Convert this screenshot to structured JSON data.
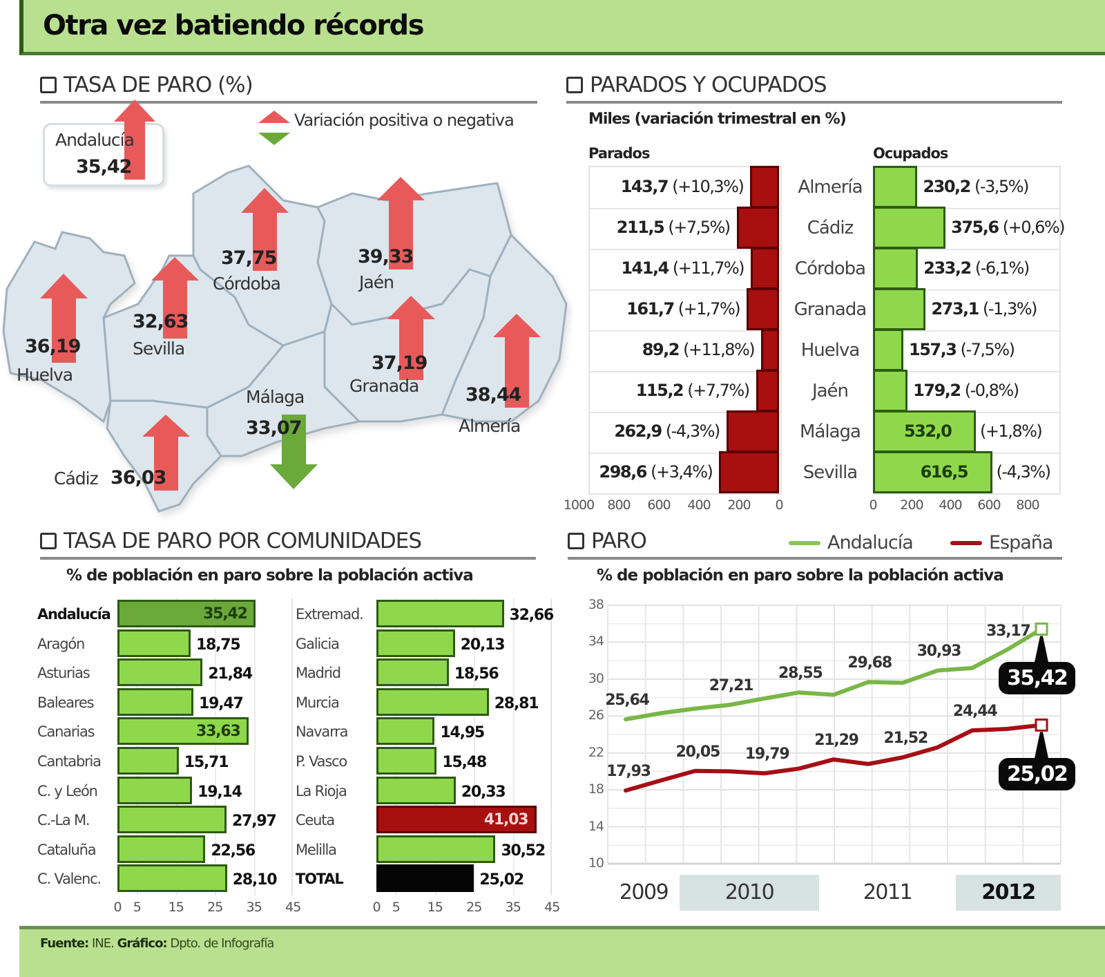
{
  "title": "Otra vez batiendo récords",
  "colors": {
    "header_green": "#b9e08f",
    "bar_green": "#8fd84c",
    "bar_green_dark": "#6aa93a",
    "bar_red": "#a80f0f",
    "arrow_red": "#e85a5a",
    "arrow_green": "#6aa93a",
    "line_andalucia": "#7ab648",
    "line_espana": "#a50f15",
    "map_fill": "#dde6ed",
    "map_stroke": "#9fb0bd"
  },
  "tasa_paro": {
    "heading": "TASA DE PARO (%)",
    "legend": "Variación positiva o negativa",
    "andalucia": {
      "name": "Andalucía",
      "value": "35,42",
      "trend": "up"
    },
    "provinces": [
      {
        "name": "Huelva",
        "value": "36,19",
        "trend": "up"
      },
      {
        "name": "Sevilla",
        "value": "32,63",
        "trend": "up"
      },
      {
        "name": "Córdoba",
        "value": "37,75",
        "trend": "up"
      },
      {
        "name": "Jaén",
        "value": "39,33",
        "trend": "up"
      },
      {
        "name": "Granada",
        "value": "37,19",
        "trend": "up"
      },
      {
        "name": "Almería",
        "value": "38,44",
        "trend": "up"
      },
      {
        "name": "Málaga",
        "value": "33,07",
        "trend": "down"
      },
      {
        "name": "Cádiz",
        "value": "36,03",
        "trend": "up"
      }
    ]
  },
  "parados_ocupados": {
    "heading": "PARADOS Y OCUPADOS",
    "subtitle": "Miles (variación trimestral en %)",
    "parados_label": "Parados",
    "ocupados_label": "Ocupados",
    "rows": [
      {
        "province": "Almería",
        "parados": "143,7",
        "parados_var": "(+10,3%)",
        "ocupados": "230,2",
        "ocupados_var": "(-3,5%)"
      },
      {
        "province": "Cádiz",
        "parados": "211,5",
        "parados_var": "(+7,5%)",
        "ocupados": "375,6",
        "ocupados_var": "(+0,6%)"
      },
      {
        "province": "Córdoba",
        "parados": "141,4",
        "parados_var": "(+11,7%)",
        "ocupados": "233,2",
        "ocupados_var": "(-6,1%)"
      },
      {
        "province": "Granada",
        "parados": "161,7",
        "parados_var": "(+1,7%)",
        "ocupados": "273,1",
        "ocupados_var": "(-1,3%)"
      },
      {
        "province": "Huelva",
        "parados": "89,2",
        "parados_var": "(+11,8%)",
        "ocupados": "157,3",
        "ocupados_var": "(-7,5%)"
      },
      {
        "province": "Jaén",
        "parados": "115,2",
        "parados_var": "(+7,7%)",
        "ocupados": "179,2",
        "ocupados_var": "(-0,8%)"
      },
      {
        "province": "Málaga",
        "parados": "262,9",
        "parados_var": "(-4,3%)",
        "ocupados": "532,0",
        "ocupados_var": "(+1,8%)"
      },
      {
        "province": "Sevilla",
        "parados": "298,6",
        "parados_var": "(+3,4%)",
        "ocupados": "616,5",
        "ocupados_var": "(-4,3%)"
      }
    ],
    "parados_axis": [
      "1000",
      "800",
      "600",
      "400",
      "200",
      "0"
    ],
    "ocupados_axis": [
      "0",
      "200",
      "400",
      "600",
      "800"
    ]
  },
  "comunidades": {
    "heading": "TASA DE PARO POR COMUNIDADES",
    "subtitle": "% de población en paro sobre la población activa",
    "axis": [
      "0",
      "5",
      "15",
      "25",
      "35",
      "45"
    ],
    "left": [
      {
        "name": "Andalucía",
        "value": "35,42",
        "style": "highlight"
      },
      {
        "name": "Aragón",
        "value": "18,75",
        "style": "normal"
      },
      {
        "name": "Asturias",
        "value": "21,84",
        "style": "normal"
      },
      {
        "name": "Baleares",
        "value": "19,47",
        "style": "normal"
      },
      {
        "name": "Canarias",
        "value": "33,63",
        "style": "normal"
      },
      {
        "name": "Cantabria",
        "value": "15,71",
        "style": "normal"
      },
      {
        "name": "C. y León",
        "value": "19,14",
        "style": "normal"
      },
      {
        "name": "C.-La M.",
        "value": "27,97",
        "style": "normal"
      },
      {
        "name": "Cataluña",
        "value": "22,56",
        "style": "normal"
      },
      {
        "name": "C. Valenc.",
        "value": "28,10",
        "style": "normal"
      }
    ],
    "right": [
      {
        "name": "Extremad.",
        "value": "32,66",
        "style": "normal"
      },
      {
        "name": "Galicia",
        "value": "20,13",
        "style": "normal"
      },
      {
        "name": "Madrid",
        "value": "18,56",
        "style": "normal"
      },
      {
        "name": "Murcia",
        "value": "28,81",
        "style": "normal"
      },
      {
        "name": "Navarra",
        "value": "14,95",
        "style": "normal"
      },
      {
        "name": "P. Vasco",
        "value": "15,48",
        "style": "normal"
      },
      {
        "name": "La Rioja",
        "value": "20,33",
        "style": "normal"
      },
      {
        "name": "Ceuta",
        "value": "41,03",
        "style": "red"
      },
      {
        "name": "Melilla",
        "value": "30,52",
        "style": "normal"
      },
      {
        "name": "TOTAL",
        "value": "25,02",
        "style": "black"
      }
    ]
  },
  "paro": {
    "heading": "PARO",
    "subtitle": "% de población en paro sobre la población activa",
    "legend": [
      {
        "name": "Andalucía",
        "color": "#8cc45a"
      },
      {
        "name": "España",
        "color": "#a50f15"
      }
    ],
    "y_ticks": [
      "38",
      "34",
      "30",
      "26",
      "22",
      "18",
      "14",
      "10"
    ],
    "years": [
      {
        "label": "2009",
        "shaded": false,
        "bold": false
      },
      {
        "label": "2010",
        "shaded": true,
        "bold": false
      },
      {
        "label": "2011",
        "shaded": false,
        "bold": false
      },
      {
        "label": "2012",
        "shaded": true,
        "bold": true
      }
    ],
    "callouts": {
      "andalucia": "35,42",
      "espana": "25,02"
    }
  },
  "footer": {
    "source_label": "Fuente:",
    "source": "INE.",
    "graphic_label": "Gráfico:",
    "graphic": "Dpto. de Infografía"
  },
  "chart_data": [
    {
      "type": "bar",
      "title": "TASA DE PARO (%)",
      "subtitle": "Tasa de paro por provincia andaluza (mapa) — flecha = variación positiva o negativa",
      "categories": [
        "Andalucía",
        "Huelva",
        "Sevilla",
        "Córdoba",
        "Jaén",
        "Granada",
        "Almería",
        "Málaga",
        "Cádiz"
      ],
      "values": [
        35.42,
        36.19,
        32.63,
        37.75,
        39.33,
        37.19,
        38.44,
        33.07,
        36.03
      ],
      "variation": [
        "up",
        "up",
        "up",
        "up",
        "up",
        "up",
        "up",
        "down",
        "up"
      ],
      "ylabel": "%"
    },
    {
      "type": "bar",
      "title": "PARADOS Y OCUPADOS",
      "subtitle": "Miles (variación trimestral en %)",
      "categories": [
        "Almería",
        "Cádiz",
        "Córdoba",
        "Granada",
        "Huelva",
        "Jaén",
        "Málaga",
        "Sevilla"
      ],
      "series": [
        {
          "name": "Parados",
          "values": [
            143.7,
            211.5,
            141.4,
            161.7,
            89.2,
            115.2,
            262.9,
            298.6
          ],
          "variation_pct": [
            10.3,
            7.5,
            11.7,
            1.7,
            11.8,
            7.7,
            -4.3,
            3.4
          ]
        },
        {
          "name": "Ocupados",
          "values": [
            230.2,
            375.6,
            233.2,
            273.1,
            157.3,
            179.2,
            532.0,
            616.5
          ],
          "variation_pct": [
            -3.5,
            0.6,
            -6.1,
            -1.3,
            -7.5,
            -0.8,
            1.8,
            -4.3
          ]
        }
      ],
      "xlabel": "Miles",
      "xlim_parados": [
        1000,
        0
      ],
      "xlim_ocupados": [
        0,
        800
      ],
      "orientation": "horizontal"
    },
    {
      "type": "bar",
      "title": "TASA DE PARO POR COMUNIDADES",
      "subtitle": "% de población en paro sobre la población activa",
      "orientation": "horizontal",
      "categories": [
        "Andalucía",
        "Aragón",
        "Asturias",
        "Baleares",
        "Canarias",
        "Cantabria",
        "C. y León",
        "C.-La M.",
        "Cataluña",
        "C. Valenc.",
        "Extremad.",
        "Galicia",
        "Madrid",
        "Murcia",
        "Navarra",
        "P. Vasco",
        "La Rioja",
        "Ceuta",
        "Melilla",
        "TOTAL"
      ],
      "values": [
        35.42,
        18.75,
        21.84,
        19.47,
        33.63,
        15.71,
        19.14,
        27.97,
        22.56,
        28.1,
        32.66,
        20.13,
        18.56,
        28.81,
        14.95,
        15.48,
        20.33,
        41.03,
        30.52,
        25.02
      ],
      "xlim": [
        0,
        45
      ],
      "xticks": [
        0,
        5,
        15,
        25,
        35,
        45
      ]
    },
    {
      "type": "line",
      "title": "PARO",
      "subtitle": "% de población en paro sobre la población activa",
      "x": [
        "2009T1",
        "2009T2",
        "2009T3",
        "2009T4",
        "2010T1",
        "2010T2",
        "2010T3",
        "2010T4",
        "2011T1",
        "2011T2",
        "2011T3",
        "2011T4",
        "2012T1"
      ],
      "series": [
        {
          "name": "Andalucía",
          "values": [
            25.64,
            26.3,
            26.8,
            27.21,
            27.9,
            28.55,
            28.3,
            29.68,
            29.6,
            30.93,
            31.2,
            33.17,
            35.42
          ]
        },
        {
          "name": "España",
          "values": [
            17.93,
            19.0,
            20.05,
            20.0,
            19.79,
            20.3,
            21.29,
            20.8,
            21.52,
            22.6,
            24.44,
            24.6,
            25.02
          ]
        }
      ],
      "labeled_points": {
        "Andalucía": [
          "25,64",
          "27,21",
          "28,55",
          "29,68",
          "30,93",
          "33,17",
          "35,42"
        ],
        "España": [
          "17,93",
          "20,05",
          "19,79",
          "21,29",
          "21,52",
          "24,44",
          "25,02"
        ]
      },
      "ylim": [
        10,
        38
      ],
      "yticks": [
        10,
        14,
        18,
        22,
        26,
        30,
        34,
        38
      ],
      "xticks": [
        "2009",
        "2010",
        "2011",
        "2012"
      ],
      "grid": true,
      "legend_position": "top-right"
    }
  ]
}
